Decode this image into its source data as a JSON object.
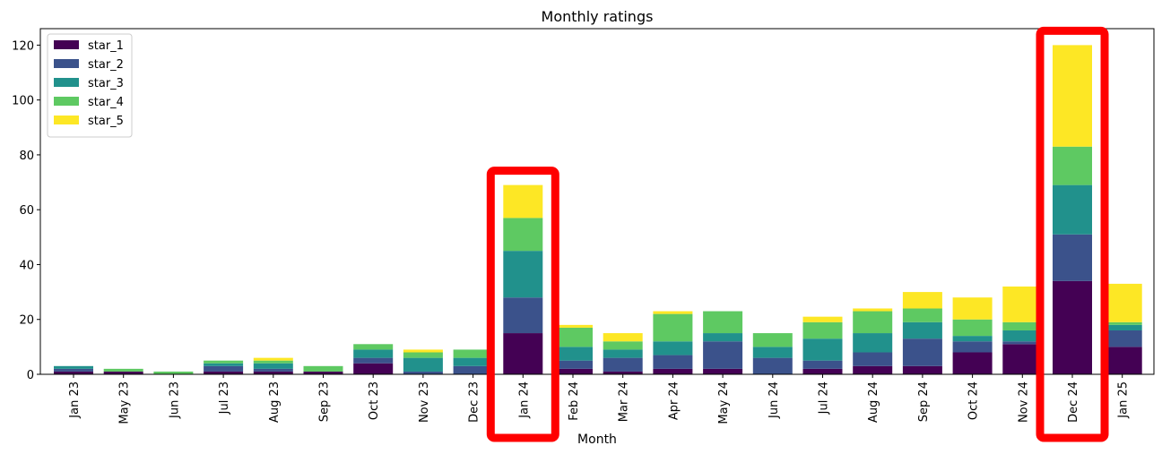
{
  "chart_data": {
    "type": "bar",
    "stacked": true,
    "title": "Monthly ratings",
    "xlabel": "Month",
    "ylabel": "",
    "ylim": [
      0,
      126
    ],
    "yticks": [
      0,
      20,
      40,
      60,
      80,
      100,
      120
    ],
    "grid": false,
    "legend_position": "upper-left",
    "categories": [
      "Jan 23",
      "May 23",
      "Jun 23",
      "Jul 23",
      "Aug 23",
      "Sep 23",
      "Oct 23",
      "Nov 23",
      "Dec 23",
      "Jan 24",
      "Feb 24",
      "Mar 24",
      "Apr 24",
      "May 24",
      "Jun 24",
      "Jul 24",
      "Aug 24",
      "Sep 24",
      "Oct 24",
      "Nov 24",
      "Dec 24",
      "Jan 25"
    ],
    "series": [
      {
        "name": "star_1",
        "color": "#440154",
        "values": [
          1,
          1,
          0,
          1,
          1,
          1,
          4,
          0,
          0,
          15,
          2,
          1,
          2,
          2,
          0,
          2,
          3,
          3,
          8,
          11,
          34,
          10
        ]
      },
      {
        "name": "star_2",
        "color": "#3b528b",
        "values": [
          1,
          0,
          0,
          2,
          1,
          0,
          2,
          1,
          3,
          13,
          3,
          5,
          5,
          10,
          6,
          3,
          5,
          10,
          4,
          1,
          17,
          6
        ]
      },
      {
        "name": "star_3",
        "color": "#21918c",
        "values": [
          1,
          0,
          0,
          1,
          2,
          0,
          3,
          5,
          3,
          17,
          5,
          3,
          5,
          3,
          4,
          8,
          7,
          6,
          2,
          4,
          18,
          2
        ]
      },
      {
        "name": "star_4",
        "color": "#5ec962",
        "values": [
          0,
          1,
          1,
          1,
          1,
          2,
          2,
          2,
          3,
          12,
          7,
          3,
          10,
          8,
          5,
          6,
          8,
          5,
          6,
          3,
          14,
          1
        ]
      },
      {
        "name": "star_5",
        "color": "#fde725",
        "values": [
          0,
          0,
          0,
          0,
          1,
          0,
          0,
          1,
          0,
          12,
          1,
          3,
          1,
          0,
          0,
          2,
          1,
          6,
          8,
          13,
          37,
          14
        ]
      }
    ],
    "highlighted_categories": [
      "Jan 24",
      "Dec 24"
    ],
    "highlight_color": "#ff0000"
  }
}
